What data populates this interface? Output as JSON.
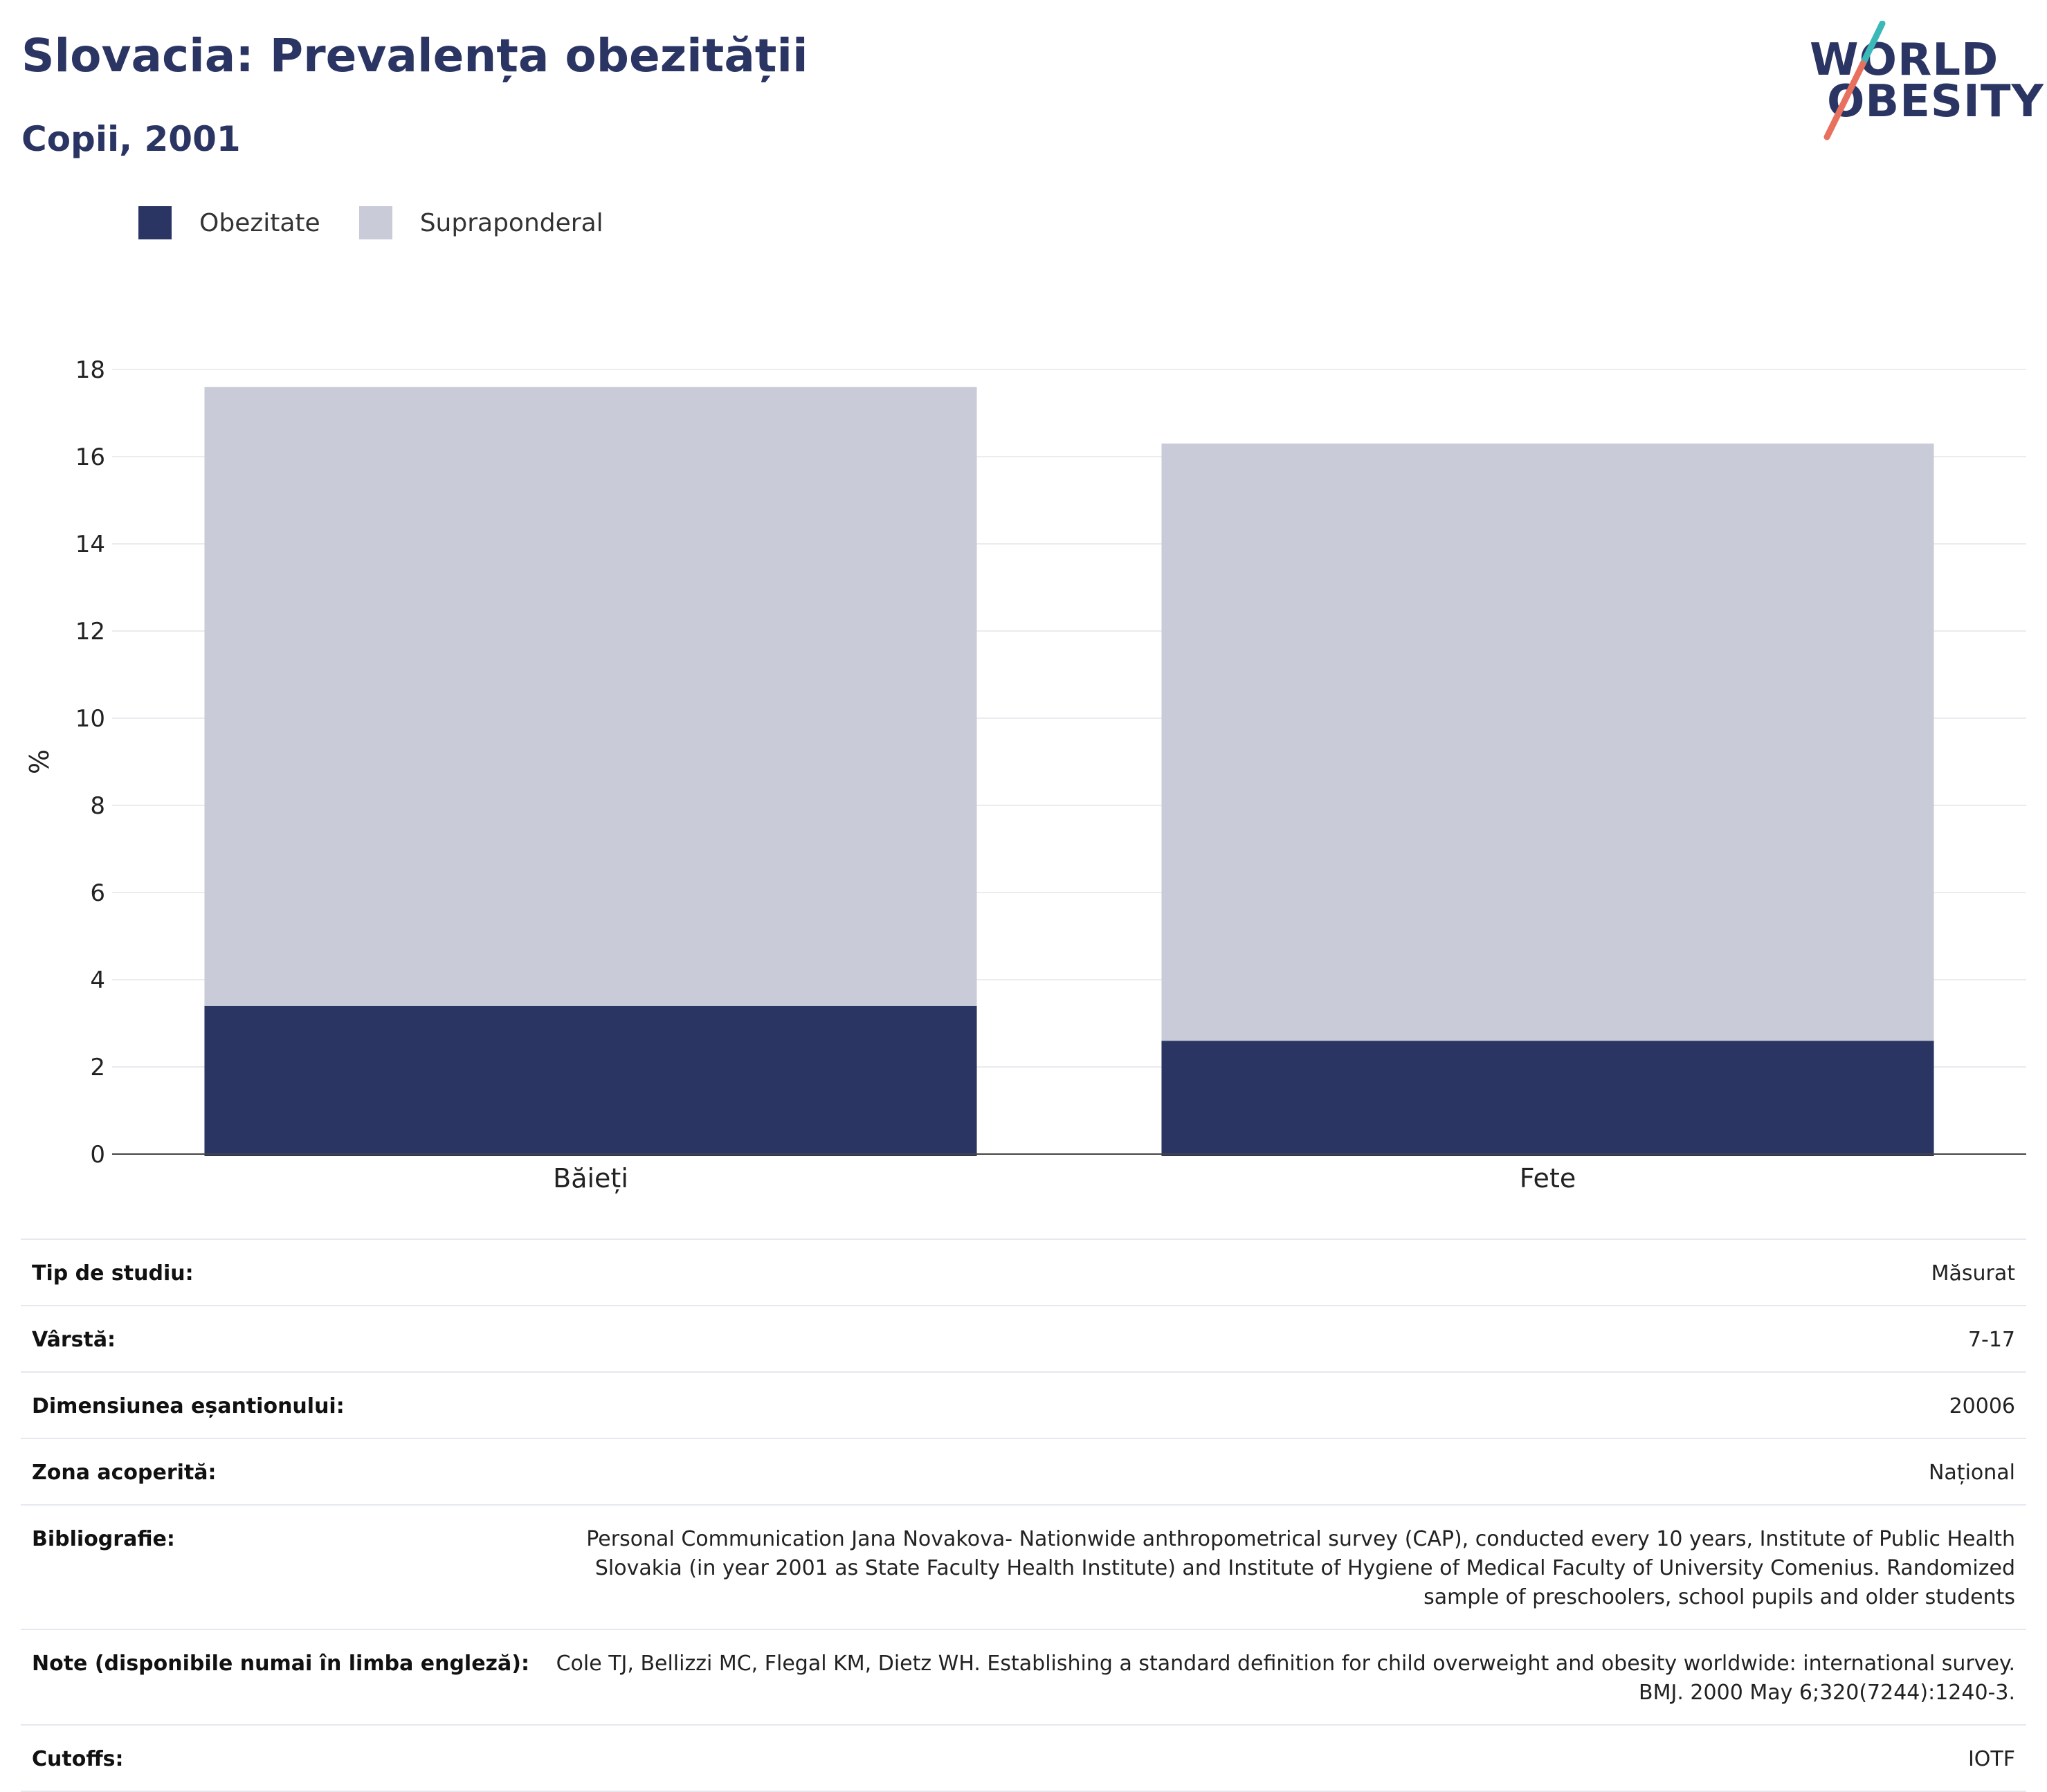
{
  "header": {
    "title": "Slovacia: Prevalența obezității",
    "subtitle": "Copii, 2001"
  },
  "logo": {
    "line1": "WORLD",
    "line2": "OBESITY"
  },
  "legend": [
    {
      "label": "Obezitate",
      "color": "#2b3563"
    },
    {
      "label": "Supraponderal",
      "color": "#c9ccd8"
    }
  ],
  "chart_data": {
    "type": "bar",
    "stacked": true,
    "categories": [
      "Băieți",
      "Fete"
    ],
    "series": [
      {
        "name": "Obezitate",
        "color": "#2b3563",
        "values": [
          3.4,
          2.6
        ]
      },
      {
        "name": "Supraponderal",
        "color": "#c9ccd8",
        "values": [
          14.2,
          13.7
        ]
      }
    ],
    "ylabel": "%",
    "ylim": [
      0,
      18
    ],
    "yticks": [
      0,
      2,
      4,
      6,
      8,
      10,
      12,
      14,
      16,
      18
    ],
    "grid": true,
    "legend_position": "top-left"
  },
  "meta": [
    {
      "key": "Tip de studiu:",
      "value": "Măsurat"
    },
    {
      "key": "Vârstă:",
      "value": "7-17"
    },
    {
      "key": "Dimensiunea eșantionului:",
      "value": "20006"
    },
    {
      "key": "Zona acoperită:",
      "value": "Național"
    },
    {
      "key": "Bibliografie:",
      "value": "Personal Communication Jana Novakova- Nationwide anthropometrical survey (CAP), conducted every 10 years, Institute of Public Health Slovakia (in year 2001 as State Faculty Health Institute) and Institute of Hygiene of Medical Faculty of University Comenius. Randomized sample of preschoolers, school pupils and older students"
    },
    {
      "key": "Note (disponibile numai în limba engleză):",
      "value": "Cole TJ, Bellizzi MC, Flegal KM, Dietz WH. Establishing a standard definition for child overweight and obesity worldwide: international survey. BMJ. 2000 May 6;320(7244):1240-3."
    },
    {
      "key": "Cutoffs:",
      "value": "IOTF"
    }
  ]
}
